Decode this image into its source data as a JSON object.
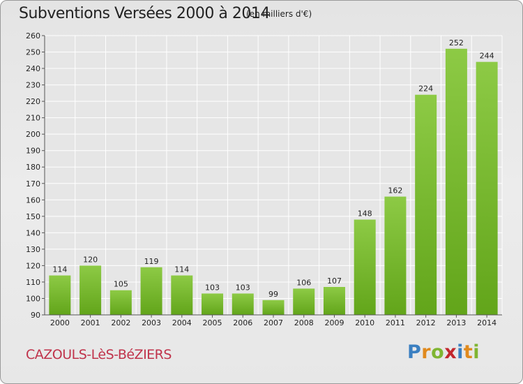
{
  "header": {
    "title": "Subventions Versées 2000 à 2014",
    "subtitle": "(en milliers d'€)"
  },
  "footer": {
    "place": "CAZOULS-LèS-BéZIERS",
    "logo_letters": [
      "P",
      "r",
      "o",
      "x",
      "i",
      "t",
      "i"
    ],
    "logo_colors": [
      "#3a7fc1",
      "#e08a1e",
      "#7fb532",
      "#c2272d",
      "#3a7fc1",
      "#e08a1e",
      "#7fb532"
    ]
  },
  "chart_data": {
    "type": "bar",
    "title": "Subventions Versées 2000 à 2014",
    "subtitle": "(en milliers d'€)",
    "xlabel": "",
    "ylabel": "",
    "categories": [
      "2000",
      "2001",
      "2002",
      "2003",
      "2004",
      "2005",
      "2006",
      "2007",
      "2008",
      "2009",
      "2010",
      "2011",
      "2012",
      "2013",
      "2014"
    ],
    "values": [
      114,
      120,
      105,
      119,
      114,
      103,
      103,
      99,
      106,
      107,
      148,
      162,
      224,
      252,
      244
    ],
    "ylim": [
      90,
      260
    ],
    "yticks": [
      90,
      100,
      110,
      120,
      130,
      140,
      150,
      160,
      170,
      180,
      190,
      200,
      210,
      220,
      230,
      240,
      250,
      260
    ],
    "grid": true,
    "colors": {
      "bar_top": "#8dca45",
      "bar_bottom": "#62a51a",
      "axis": "#555555",
      "grid": "#ffffff"
    }
  }
}
